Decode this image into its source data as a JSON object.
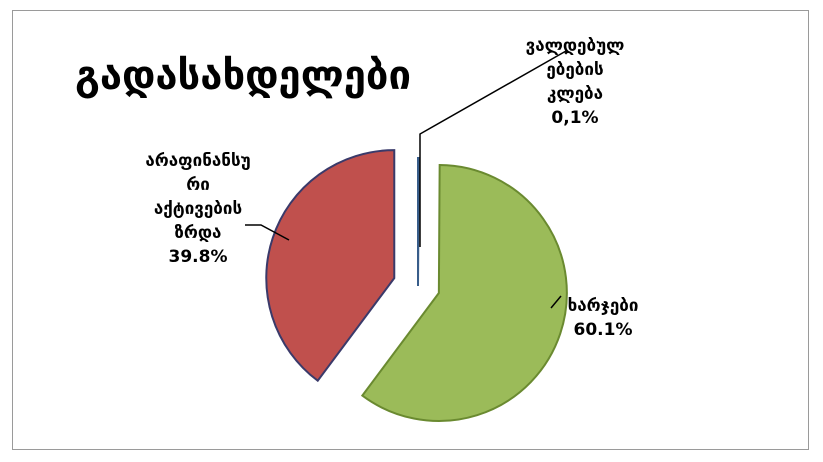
{
  "chart_data": {
    "type": "pie",
    "title": "გადასახდელები",
    "slices": [
      {
        "label": [
          "ვალდებულ",
          "ებების",
          "კლება"
        ],
        "value_label": "0,1%",
        "value": 0.1,
        "color": "#4f81bd"
      },
      {
        "label": [
          "ხარჯები"
        ],
        "value_label": "60.1%",
        "value": 60.1,
        "color": "#9bbb59"
      },
      {
        "label": [
          "არაფინანსუ",
          "რი",
          "აქტივების",
          "ზრდა"
        ],
        "value_label": "39.8%",
        "value": 39.8,
        "color": "#c0504d"
      }
    ],
    "exploded": true,
    "legend": "none"
  }
}
